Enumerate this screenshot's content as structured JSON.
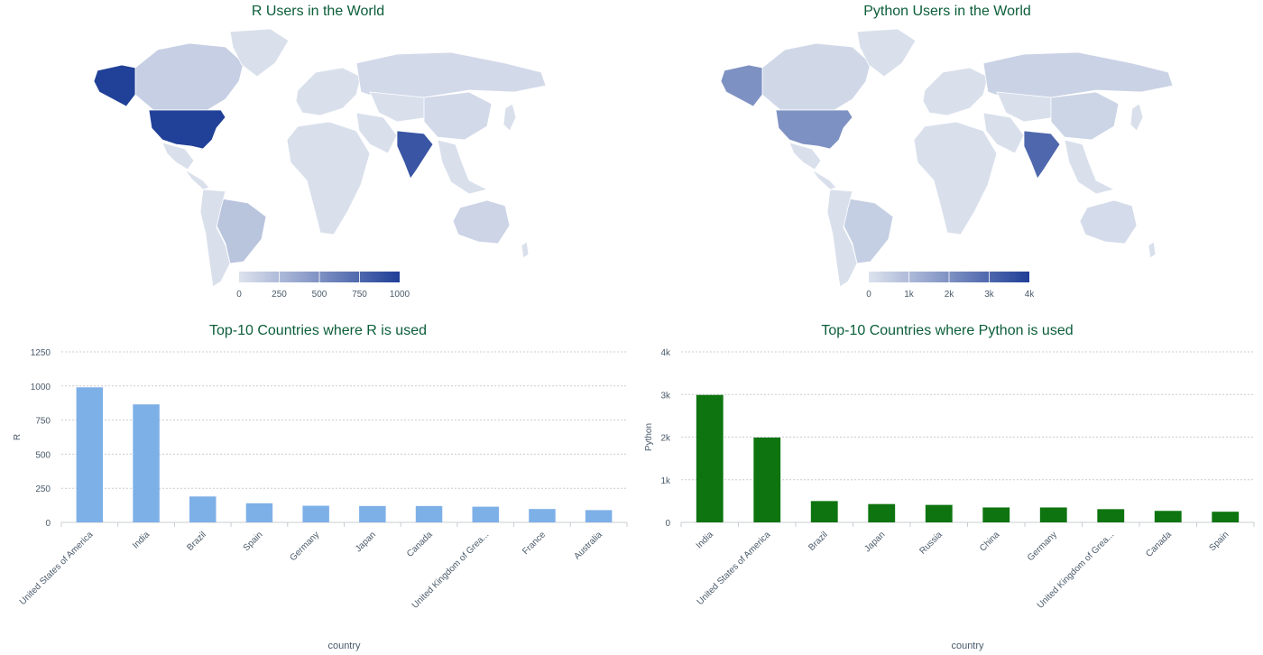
{
  "maps": [
    {
      "title": "R Users in the World",
      "colorbar": {
        "min": 0,
        "max": 1000,
        "ticks": [
          "0",
          "250",
          "500",
          "750",
          "1000"
        ]
      },
      "colors": {
        "low": "#dde3ee",
        "high": "#1f3f97"
      },
      "highlights": [
        {
          "country": "United States of America",
          "value": 990
        },
        {
          "country": "India",
          "value": 865
        },
        {
          "country": "Brazil",
          "value": 190
        },
        {
          "country": "Canada",
          "value": 120
        },
        {
          "country": "Australia",
          "value": 90
        },
        {
          "country": "Russia",
          "value": 60
        },
        {
          "country": "China",
          "value": 60
        }
      ]
    },
    {
      "title": "Python Users in the World",
      "colorbar": {
        "min": 0,
        "max": 4000,
        "ticks": [
          "0",
          "1k",
          "2k",
          "3k",
          "4k"
        ]
      },
      "colors": {
        "low": "#dde3ee",
        "high": "#1f3f97"
      },
      "highlights": [
        {
          "country": "India",
          "value": 2990
        },
        {
          "country": "United States of America",
          "value": 1990
        },
        {
          "country": "Brazil",
          "value": 500
        },
        {
          "country": "Canada",
          "value": 270
        },
        {
          "country": "Russia",
          "value": 410
        },
        {
          "country": "China",
          "value": 350
        },
        {
          "country": "Australia",
          "value": 200
        }
      ]
    }
  ],
  "chart_data": [
    {
      "type": "bar",
      "title": "Top-10 Countries where R is used",
      "xlabel": "country",
      "ylabel": "R",
      "ylim": [
        0,
        1250
      ],
      "yticks": [
        "0",
        "250",
        "500",
        "750",
        "1000",
        "1250"
      ],
      "ytick_values": [
        0,
        250,
        500,
        750,
        1000,
        1250
      ],
      "grid": true,
      "color": "#7eb0e8",
      "categories": [
        "United States of America",
        "India",
        "Brazil",
        "Spain",
        "Germany",
        "Japan",
        "Canada",
        "United Kingdom of Grea...",
        "France",
        "Australia"
      ],
      "values": [
        990,
        865,
        190,
        140,
        122,
        120,
        120,
        115,
        98,
        90
      ]
    },
    {
      "type": "bar",
      "title": "Top-10 Countries where Python is used",
      "xlabel": "country",
      "ylabel": "Python",
      "ylim": [
        0,
        4000
      ],
      "yticks": [
        "0",
        "1k",
        "2k",
        "3k",
        "4k"
      ],
      "ytick_values": [
        0,
        1000,
        2000,
        3000,
        4000
      ],
      "grid": true,
      "color": "#0e7410",
      "categories": [
        "India",
        "United States of America",
        "Brazil",
        "Japan",
        "Russia",
        "China",
        "Germany",
        "United Kingdom of Grea...",
        "Canada",
        "Spain"
      ],
      "values": [
        2990,
        1990,
        500,
        430,
        410,
        350,
        350,
        310,
        270,
        250
      ]
    }
  ]
}
